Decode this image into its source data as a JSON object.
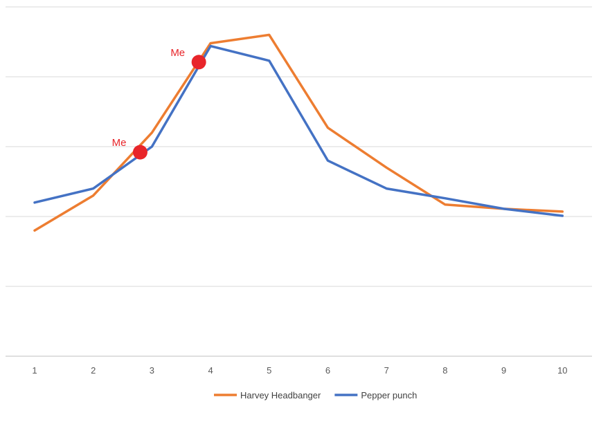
{
  "chart_data": {
    "type": "line",
    "title": "",
    "xlabel": "",
    "ylabel": "",
    "categories": [
      "1",
      "2",
      "3",
      "4",
      "5",
      "6",
      "7",
      "8",
      "9",
      "10"
    ],
    "ylim": [
      0,
      5
    ],
    "y_gridlines": [
      0,
      1,
      2,
      3,
      4,
      5
    ],
    "y_tick_labels_shown": false,
    "grid": true,
    "legend_position": "bottom",
    "series": [
      {
        "name": "Harvey Headbanger",
        "color": "#ED7D31",
        "values": [
          1.8,
          2.3,
          3.2,
          4.48,
          4.6,
          3.27,
          2.7,
          2.17,
          2.11,
          2.07
        ]
      },
      {
        "name": "Pepper punch",
        "color": "#4472C4",
        "values": [
          2.2,
          2.4,
          3.0,
          4.44,
          4.23,
          2.8,
          2.4,
          2.26,
          2.11,
          2.01
        ]
      }
    ],
    "annotations": [
      {
        "label": "Me",
        "x": 2.8,
        "y": 2.92,
        "color": "#E8252A"
      },
      {
        "label": "Me",
        "x": 3.8,
        "y": 4.21,
        "color": "#E8252A"
      }
    ]
  }
}
